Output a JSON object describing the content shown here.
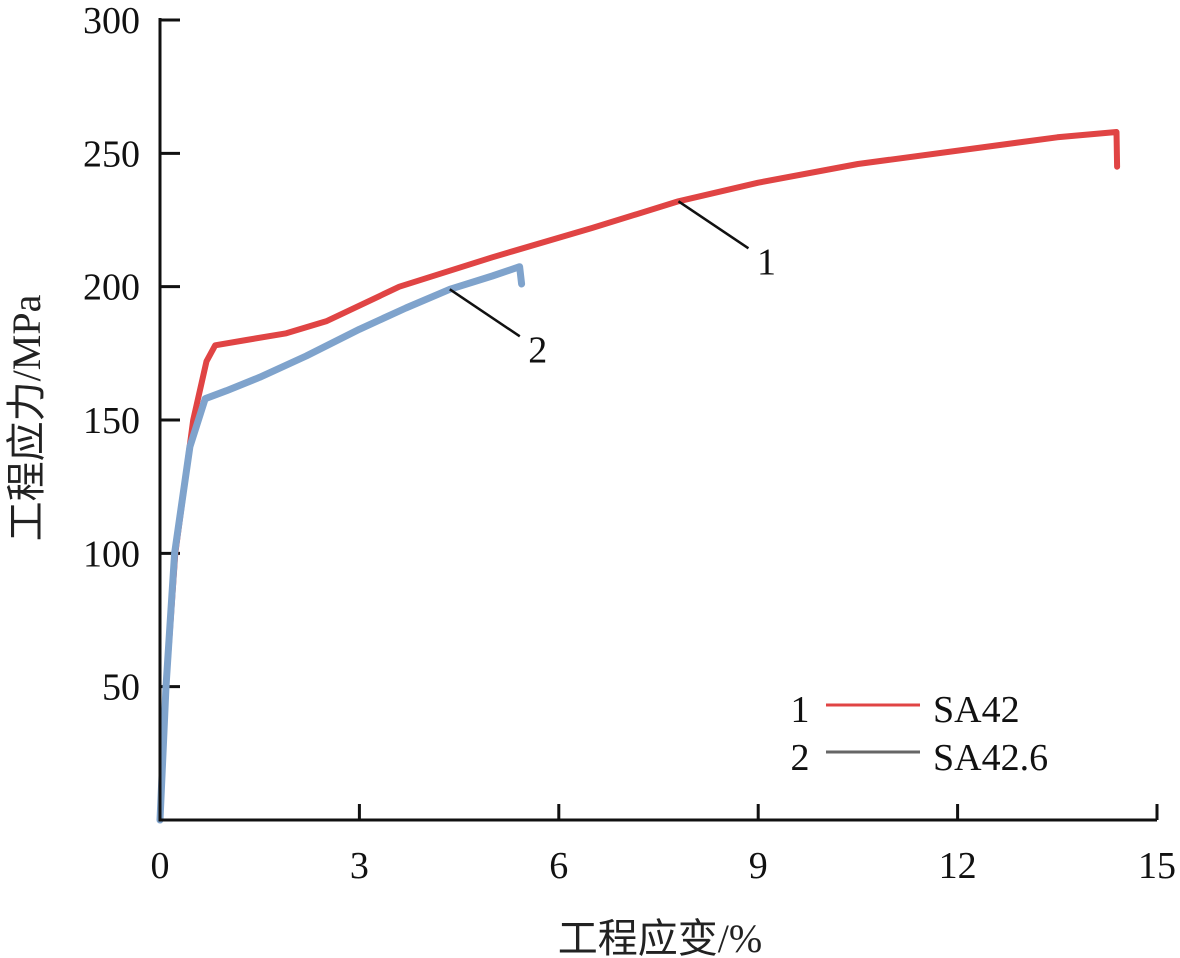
{
  "chart_data": {
    "type": "line",
    "title": "",
    "xlabel": "工程应变/%",
    "ylabel": "工程应力/MPa",
    "xlim": [
      0,
      15
    ],
    "ylim": [
      0,
      300
    ],
    "xticks": [
      0,
      3,
      6,
      9,
      12,
      15
    ],
    "yticks": [
      50,
      100,
      150,
      200,
      250,
      300
    ],
    "x_origin_label": "0",
    "grid": false,
    "legend_position": "bottom-right",
    "series": [
      {
        "id": "1",
        "name": "SA42",
        "color": "#e04444",
        "points": [
          [
            0,
            0
          ],
          [
            0.09,
            50
          ],
          [
            0.23,
            100
          ],
          [
            0.5,
            150
          ],
          [
            0.7,
            172
          ],
          [
            0.83,
            178
          ],
          [
            1.3,
            180
          ],
          [
            1.9,
            182.5
          ],
          [
            2.5,
            187
          ],
          [
            3.6,
            200
          ],
          [
            5,
            211
          ],
          [
            6.5,
            222
          ],
          [
            7.8,
            232
          ],
          [
            9,
            239
          ],
          [
            10.5,
            246
          ],
          [
            12.3,
            252
          ],
          [
            13.5,
            256
          ],
          [
            14.39,
            258
          ],
          [
            14.4,
            245
          ]
        ]
      },
      {
        "id": "2",
        "name": "SA42.6",
        "color": "#7fa3cc",
        "points": [
          [
            0,
            0
          ],
          [
            0.09,
            50
          ],
          [
            0.22,
            100
          ],
          [
            0.45,
            140
          ],
          [
            0.68,
            158
          ],
          [
            1.0,
            161
          ],
          [
            1.5,
            166
          ],
          [
            2.2,
            174
          ],
          [
            3,
            184
          ],
          [
            3.7,
            192
          ],
          [
            4.36,
            199
          ],
          [
            5,
            204
          ],
          [
            5.41,
            207.5
          ],
          [
            5.44,
            201
          ]
        ]
      }
    ],
    "legend_line_colors": [
      "#e04444",
      "#666666"
    ],
    "annotations": [
      {
        "label": "1",
        "series": "1",
        "at": [
          7.8,
          232
        ]
      },
      {
        "label": "2",
        "series": "2",
        "at": [
          4.36,
          199
        ]
      }
    ]
  }
}
